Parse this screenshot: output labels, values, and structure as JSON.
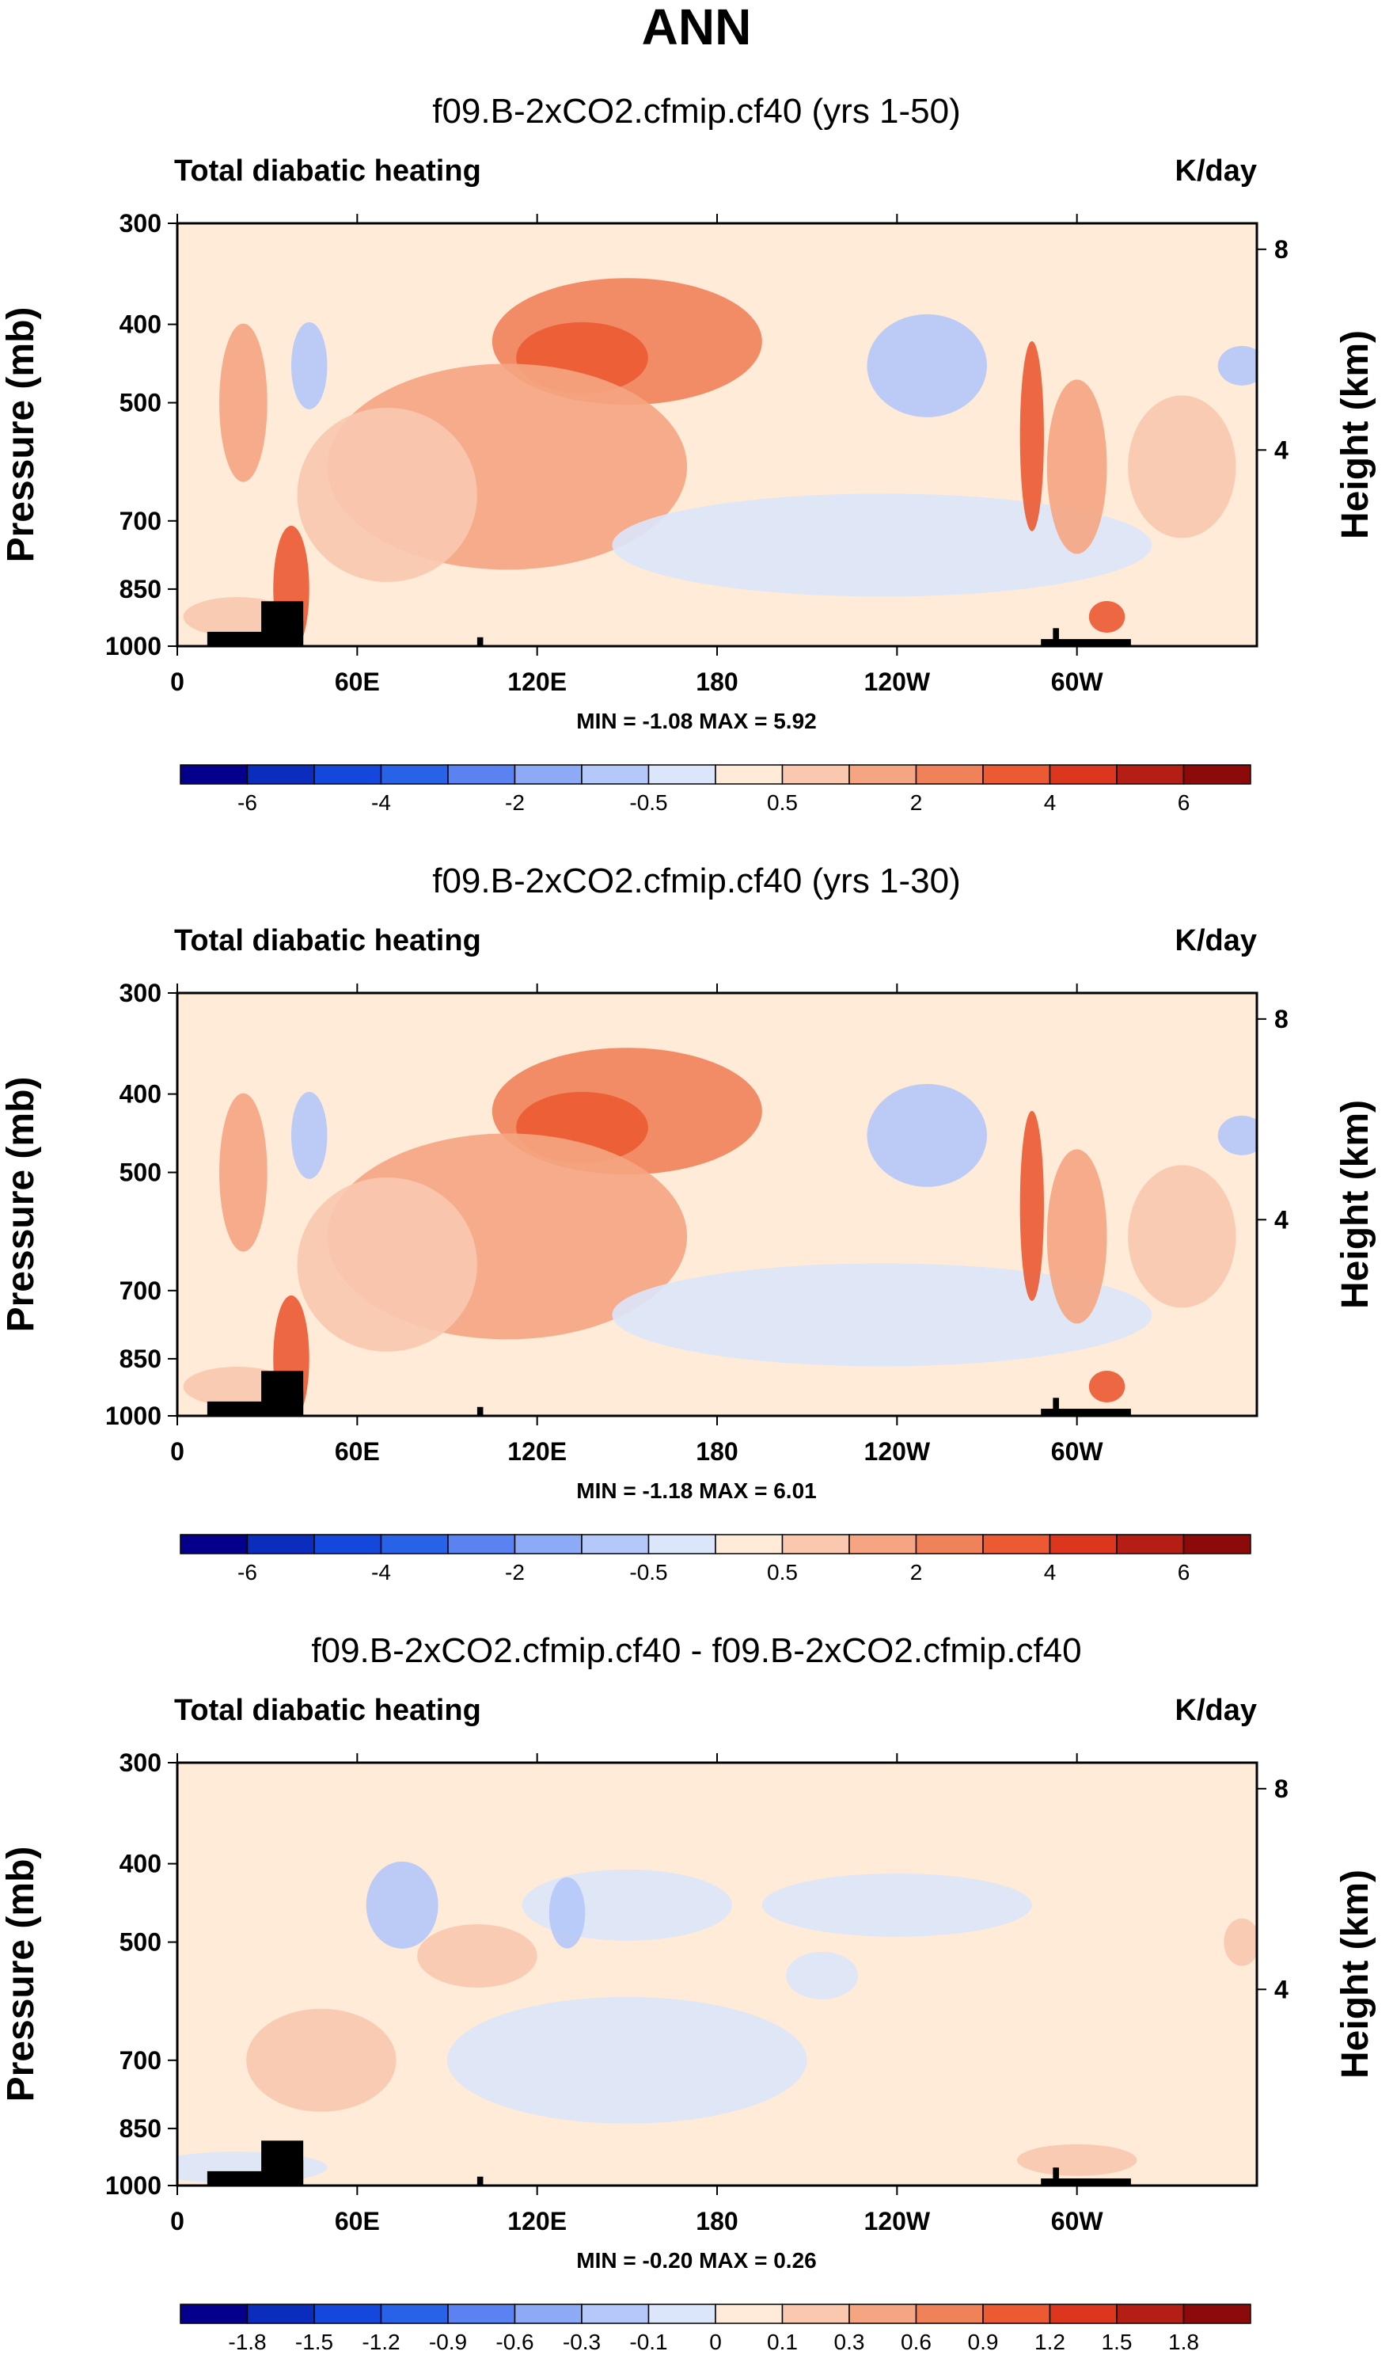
{
  "figure_title": "ANN",
  "chart_data": [
    {
      "type": "heatmap",
      "title": "f09.B-2xCO2.cfmip.cf40 (yrs 1-50)",
      "left_label": "Total diabatic heating",
      "right_label": "K/day",
      "ylabel": "Pressure (mb)",
      "y2label": "Height (km)",
      "ylim": [
        1000,
        300
      ],
      "yticks": [
        "300",
        "400",
        "500",
        "700",
        "850",
        "1000"
      ],
      "yticks_values": [
        300,
        400,
        500,
        700,
        850,
        1000
      ],
      "xticks": [
        "0",
        "60E",
        "120E",
        "180",
        "120W",
        "60W"
      ],
      "xticks_values": [
        0,
        60,
        120,
        180,
        240,
        300
      ],
      "xlim": [
        0,
        360
      ],
      "y2ticks": [
        "8",
        "4"
      ],
      "y2ticks_values": [
        8,
        4
      ],
      "stats_text": "MIN =  -1.08  MAX =   5.92",
      "min": -1.08,
      "max": 5.92,
      "colorbar": {
        "labels": [
          "-6",
          "-4",
          "-2",
          "-0.5",
          "0.5",
          "2",
          "4",
          "6"
        ],
        "colors": [
          "#05008C",
          "#0A2DBE",
          "#1448DC",
          "#2862E6",
          "#5A82F0",
          "#8CAAF5",
          "#B4C8FA",
          "#DCE6FA",
          "#FFEBD7",
          "#FAC8AF",
          "#F5A582",
          "#F0825A",
          "#EB5A32",
          "#DC371E",
          "#B41E14",
          "#8C0A0A"
        ]
      }
    },
    {
      "type": "heatmap",
      "title": "f09.B-2xCO2.cfmip.cf40 (yrs 1-30)",
      "left_label": "Total diabatic heating",
      "right_label": "K/day",
      "ylabel": "Pressure (mb)",
      "y2label": "Height (km)",
      "ylim": [
        1000,
        300
      ],
      "yticks": [
        "300",
        "400",
        "500",
        "700",
        "850",
        "1000"
      ],
      "yticks_values": [
        300,
        400,
        500,
        700,
        850,
        1000
      ],
      "xticks": [
        "0",
        "60E",
        "120E",
        "180",
        "120W",
        "60W"
      ],
      "xticks_values": [
        0,
        60,
        120,
        180,
        240,
        300
      ],
      "xlim": [
        0,
        360
      ],
      "y2ticks": [
        "8",
        "4"
      ],
      "y2ticks_values": [
        8,
        4
      ],
      "stats_text": "MIN =  -1.18  MAX =   6.01",
      "min": -1.18,
      "max": 6.01,
      "colorbar": {
        "labels": [
          "-6",
          "-4",
          "-2",
          "-0.5",
          "0.5",
          "2",
          "4",
          "6"
        ],
        "colors": [
          "#05008C",
          "#0A2DBE",
          "#1448DC",
          "#2862E6",
          "#5A82F0",
          "#8CAAF5",
          "#B4C8FA",
          "#DCE6FA",
          "#FFEBD7",
          "#FAC8AF",
          "#F5A582",
          "#F0825A",
          "#EB5A32",
          "#DC371E",
          "#B41E14",
          "#8C0A0A"
        ]
      }
    },
    {
      "type": "heatmap",
      "title": "f09.B-2xCO2.cfmip.cf40 - f09.B-2xCO2.cfmip.cf40",
      "left_label": "Total diabatic heating",
      "right_label": "K/day",
      "ylabel": "Pressure (mb)",
      "y2label": "Height (km)",
      "ylim": [
        1000,
        300
      ],
      "yticks": [
        "300",
        "400",
        "500",
        "700",
        "850",
        "1000"
      ],
      "yticks_values": [
        300,
        400,
        500,
        700,
        850,
        1000
      ],
      "xticks": [
        "0",
        "60E",
        "120E",
        "180",
        "120W",
        "60W"
      ],
      "xticks_values": [
        0,
        60,
        120,
        180,
        240,
        300
      ],
      "xlim": [
        0,
        360
      ],
      "y2ticks": [
        "8",
        "4"
      ],
      "y2ticks_values": [
        8,
        4
      ],
      "stats_text": "MIN =  -0.20  MAX =   0.26",
      "min": -0.2,
      "max": 0.26,
      "colorbar": {
        "labels": [
          "-1.8",
          "-1.5",
          "-1.2",
          "-0.9",
          "-0.6",
          "-0.3",
          "-0.1",
          "0",
          "0.1",
          "0.3",
          "0.6",
          "0.9",
          "1.2",
          "1.5",
          "1.8"
        ],
        "colors": [
          "#05008C",
          "#0A2DBE",
          "#1448DC",
          "#2862E6",
          "#5A82F0",
          "#8CAAF5",
          "#B4C8FA",
          "#DCE6FA",
          "#FFEBD7",
          "#FAC8AF",
          "#F5A582",
          "#F0825A",
          "#EB5A32",
          "#DC371E",
          "#B41E14",
          "#8C0A0A"
        ]
      }
    }
  ]
}
